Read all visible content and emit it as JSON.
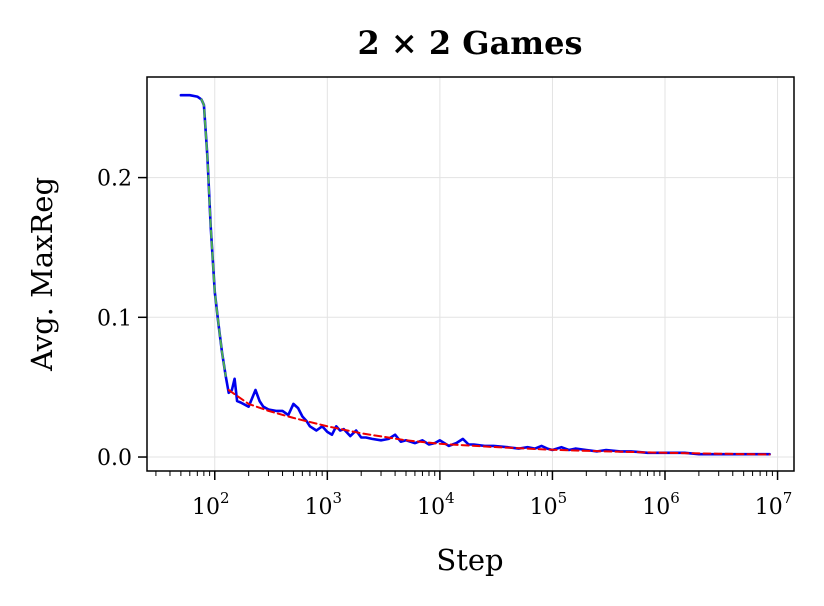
{
  "chart_data": {
    "type": "line",
    "title": "2 × 2 Games",
    "xlabel": "Step",
    "ylabel": "Avg. MaxReg",
    "xscale": "log",
    "xlim": [
      25,
      14000000
    ],
    "ylim": [
      -0.01,
      0.272
    ],
    "grid": true,
    "yticks": [
      {
        "value": 0.0,
        "label": "0.0"
      },
      {
        "value": 0.1,
        "label": "0.1"
      },
      {
        "value": 0.2,
        "label": "0.2"
      }
    ],
    "xticks": [
      {
        "value": 100,
        "base": "10",
        "exp": "2"
      },
      {
        "value": 1000,
        "base": "10",
        "exp": "3"
      },
      {
        "value": 10000,
        "base": "10",
        "exp": "4"
      },
      {
        "value": 100000,
        "base": "10",
        "exp": "5"
      },
      {
        "value": 1000000,
        "base": "10",
        "exp": "6"
      },
      {
        "value": 10000000,
        "base": "10",
        "exp": "7"
      }
    ],
    "series": [
      {
        "color": "#0000ee",
        "style": "solid",
        "x": [
          50,
          60,
          70,
          76,
          80,
          86,
          92,
          100,
          108,
          116,
          125,
          133,
          142,
          150,
          158,
          170,
          200,
          230,
          250,
          270,
          300,
          350,
          400,
          450,
          500,
          550,
          600,
          650,
          700,
          800,
          900,
          1000,
          1100,
          1200,
          1300,
          1400,
          1600,
          1800,
          2000,
          2200,
          2500,
          3000,
          3500,
          4000,
          4500,
          5000,
          6000,
          7000,
          8000,
          9000,
          10000,
          12000,
          14000,
          16000,
          18000,
          20000,
          25000,
          30000,
          40000,
          50000,
          60000,
          70000,
          80000,
          90000,
          100000,
          120000,
          140000,
          160000,
          200000,
          250000,
          300000,
          400000,
          500000,
          700000,
          1000000,
          1500000,
          2000000,
          3000000,
          4000000,
          6000000,
          8500000
        ],
        "y": [
          0.259,
          0.259,
          0.258,
          0.256,
          0.252,
          0.215,
          0.165,
          0.118,
          0.095,
          0.075,
          0.058,
          0.046,
          0.048,
          0.056,
          0.04,
          0.039,
          0.036,
          0.048,
          0.04,
          0.036,
          0.034,
          0.033,
          0.033,
          0.03,
          0.038,
          0.035,
          0.029,
          0.026,
          0.022,
          0.019,
          0.022,
          0.018,
          0.016,
          0.022,
          0.019,
          0.02,
          0.015,
          0.019,
          0.014,
          0.014,
          0.013,
          0.012,
          0.013,
          0.016,
          0.011,
          0.012,
          0.01,
          0.012,
          0.009,
          0.01,
          0.012,
          0.008,
          0.01,
          0.013,
          0.009,
          0.009,
          0.008,
          0.008,
          0.007,
          0.006,
          0.007,
          0.006,
          0.008,
          0.006,
          0.005,
          0.007,
          0.005,
          0.006,
          0.005,
          0.004,
          0.005,
          0.004,
          0.004,
          0.003,
          0.003,
          0.003,
          0.002,
          0.002,
          0.002,
          0.002,
          0.002
        ]
      },
      {
        "color": "#4caf50",
        "style": "dashed",
        "x": [
          76,
          80,
          86,
          92,
          100,
          108,
          116,
          125
        ],
        "y": [
          0.256,
          0.252,
          0.215,
          0.165,
          0.118,
          0.095,
          0.075,
          0.058
        ]
      },
      {
        "color": "#ee0000",
        "style": "dashed",
        "x": [
          133,
          200,
          300,
          500,
          1000,
          2000,
          5000,
          10000,
          30000,
          100000,
          300000,
          1000000,
          3000000,
          8500000
        ],
        "y": [
          0.048,
          0.038,
          0.033,
          0.028,
          0.022,
          0.017,
          0.012,
          0.0095,
          0.0072,
          0.0052,
          0.004,
          0.003,
          0.0024,
          0.0018
        ]
      }
    ]
  }
}
